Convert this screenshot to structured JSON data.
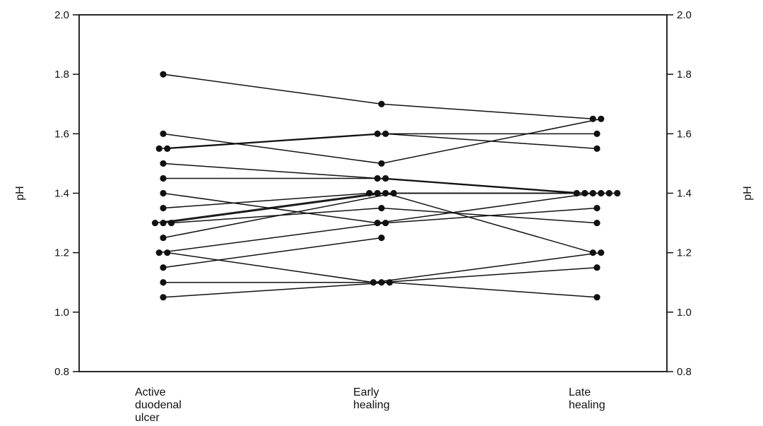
{
  "chart_data": {
    "type": "line",
    "title": "",
    "xlabel": "",
    "ylabel": "pH",
    "ylabel_right": "pH",
    "ylim": [
      0.8,
      2.0
    ],
    "yticks": [
      0.8,
      1.0,
      1.2,
      1.4,
      1.6,
      1.8,
      2.0
    ],
    "ytick_labels": [
      "0.8",
      "1.0",
      "1.2",
      "1.4",
      "1.6",
      "1.8",
      "2.0"
    ],
    "grid": false,
    "categories": [
      [
        "Active",
        "duodenal",
        "ulcer"
      ],
      [
        "Early",
        "healing"
      ],
      [
        "Late",
        "healing"
      ]
    ],
    "series": [
      {
        "values": [
          1.8,
          1.7,
          1.65
        ]
      },
      {
        "values": [
          1.6,
          1.5,
          1.65
        ]
      },
      {
        "values": [
          1.55,
          1.6,
          1.6
        ]
      },
      {
        "values": [
          1.55,
          1.6,
          1.55
        ]
      },
      {
        "values": [
          1.5,
          1.45,
          1.4
        ]
      },
      {
        "values": [
          1.45,
          1.45,
          1.4
        ]
      },
      {
        "values": [
          1.4,
          1.3,
          1.4
        ]
      },
      {
        "values": [
          1.35,
          1.4,
          1.4
        ]
      },
      {
        "values": [
          1.3,
          1.4,
          1.4
        ]
      },
      {
        "values": [
          1.3,
          1.4,
          1.2
        ]
      },
      {
        "values": [
          1.3,
          1.35,
          1.3
        ]
      },
      {
        "values": [
          1.25,
          1.4,
          1.4
        ]
      },
      {
        "values": [
          1.2,
          1.3,
          1.35
        ]
      },
      {
        "values": [
          1.2,
          1.1,
          1.2
        ]
      },
      {
        "values": [
          1.15,
          1.25,
          null
        ]
      },
      {
        "values": [
          1.1,
          1.1,
          1.15
        ]
      },
      {
        "values": [
          1.05,
          1.1,
          1.05
        ]
      }
    ]
  }
}
